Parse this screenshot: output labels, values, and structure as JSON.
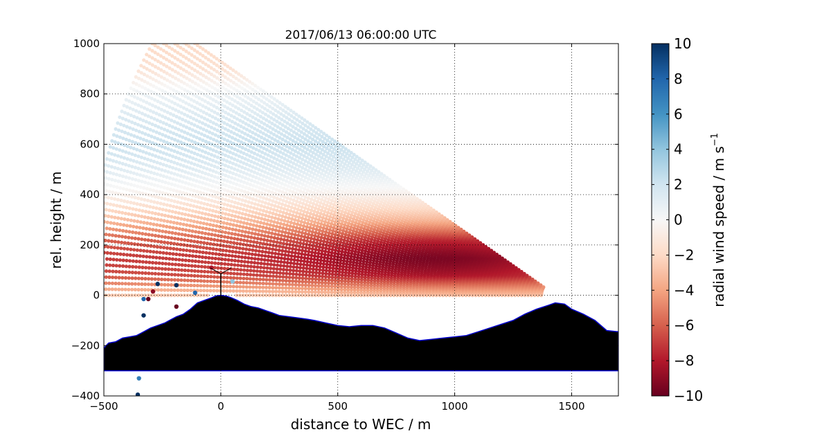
{
  "chart_data": {
    "type": "scatter",
    "title": "2017/06/13 06:00:00 UTC",
    "xlabel": "distance to WEC / m",
    "ylabel": "rel. height / m",
    "xlim": [
      -500,
      1700
    ],
    "ylim": [
      -400,
      1000
    ],
    "xticks": [
      -500,
      0,
      500,
      1000,
      1500
    ],
    "yticks": [
      -400,
      -200,
      0,
      200,
      400,
      600,
      800,
      1000
    ],
    "xtick_labels": [
      "−500",
      "0",
      "500",
      "1000",
      "1500"
    ],
    "ytick_labels": [
      "−400",
      "−200",
      "0",
      "200",
      "400",
      "600",
      "800",
      "1000"
    ],
    "grid": true,
    "colorbar": {
      "label": "radial wind speed / m s",
      "label_superscript": "−1",
      "vmin": -10,
      "vmax": 10,
      "ticks": [
        10,
        8,
        6,
        4,
        2,
        0,
        -2,
        -4,
        -6,
        -8,
        -10
      ],
      "tick_labels": [
        "10",
        "8",
        "6",
        "4",
        "2",
        "0",
        "−2",
        "−4",
        "−6",
        "−8",
        "−10"
      ],
      "colormap": "RdBu"
    },
    "scan": {
      "origin_x": 1430,
      "origin_y": 0,
      "range_min": 60,
      "range_max": 2000,
      "elevation_min_deg": 0,
      "elevation_max_deg": 33,
      "x_min": -500,
      "x_max_clip": 1430,
      "wind_shear_layers": [
        {
          "height": 1000,
          "value": -2.0
        },
        {
          "height": 900,
          "value": -1.5
        },
        {
          "height": 800,
          "value": 0.5
        },
        {
          "height": 700,
          "value": 1.5
        },
        {
          "height": 600,
          "value": 2.2
        },
        {
          "height": 500,
          "value": 1.2
        },
        {
          "height": 400,
          "value": -0.5
        },
        {
          "height": 300,
          "value": -3.0
        },
        {
          "height": 220,
          "value": -6.0
        },
        {
          "height": 150,
          "value": -7.0
        },
        {
          "height": 80,
          "value": -6.5
        },
        {
          "height": 20,
          "value": -3.5
        },
        {
          "height": -50,
          "value": -0.5
        },
        {
          "height": -120,
          "value": 1.0
        }
      ]
    },
    "terrain": [
      [
        -500,
        -210
      ],
      [
        -480,
        -190
      ],
      [
        -450,
        -185
      ],
      [
        -420,
        -170
      ],
      [
        -390,
        -165
      ],
      [
        -360,
        -160
      ],
      [
        -340,
        -150
      ],
      [
        -300,
        -130
      ],
      [
        -270,
        -120
      ],
      [
        -240,
        -110
      ],
      [
        -220,
        -100
      ],
      [
        -190,
        -85
      ],
      [
        -160,
        -75
      ],
      [
        -130,
        -55
      ],
      [
        -100,
        -30
      ],
      [
        -70,
        -20
      ],
      [
        -40,
        -10
      ],
      [
        -20,
        -2
      ],
      [
        0,
        0
      ],
      [
        25,
        -3
      ],
      [
        45,
        -10
      ],
      [
        70,
        -20
      ],
      [
        100,
        -35
      ],
      [
        130,
        -45
      ],
      [
        160,
        -50
      ],
      [
        190,
        -60
      ],
      [
        220,
        -70
      ],
      [
        250,
        -80
      ],
      [
        290,
        -85
      ],
      [
        330,
        -90
      ],
      [
        370,
        -95
      ],
      [
        400,
        -100
      ],
      [
        450,
        -110
      ],
      [
        500,
        -120
      ],
      [
        550,
        -125
      ],
      [
        600,
        -120
      ],
      [
        650,
        -120
      ],
      [
        700,
        -130
      ],
      [
        750,
        -150
      ],
      [
        800,
        -170
      ],
      [
        850,
        -180
      ],
      [
        900,
        -175
      ],
      [
        950,
        -170
      ],
      [
        1000,
        -165
      ],
      [
        1050,
        -160
      ],
      [
        1100,
        -145
      ],
      [
        1150,
        -130
      ],
      [
        1200,
        -115
      ],
      [
        1250,
        -100
      ],
      [
        1300,
        -75
      ],
      [
        1350,
        -55
      ],
      [
        1400,
        -40
      ],
      [
        1430,
        -30
      ],
      [
        1470,
        -35
      ],
      [
        1500,
        -55
      ],
      [
        1550,
        -75
      ],
      [
        1600,
        -100
      ],
      [
        1650,
        -140
      ],
      [
        1700,
        -145
      ]
    ],
    "terrain_base": -300,
    "turbine": {
      "x": 0,
      "y": 0,
      "hub_height": 85,
      "blade_length": 40
    },
    "isolated_points": [
      {
        "x": -330,
        "y": -15,
        "value": 8
      },
      {
        "x": -330,
        "y": -80,
        "value": 10
      },
      {
        "x": -310,
        "y": -15,
        "value": -10
      },
      {
        "x": -290,
        "y": 15,
        "value": -9
      },
      {
        "x": -270,
        "y": 45,
        "value": 10
      },
      {
        "x": -190,
        "y": 40,
        "value": 10
      },
      {
        "x": -190,
        "y": -45,
        "value": -10
      },
      {
        "x": -110,
        "y": 10,
        "value": 8
      },
      {
        "x": -40,
        "y": 110,
        "value": -8
      },
      {
        "x": 50,
        "y": 55,
        "value": 4
      },
      {
        "x": -350,
        "y": -330,
        "value": 7
      },
      {
        "x": -355,
        "y": -395,
        "value": 10
      }
    ]
  }
}
